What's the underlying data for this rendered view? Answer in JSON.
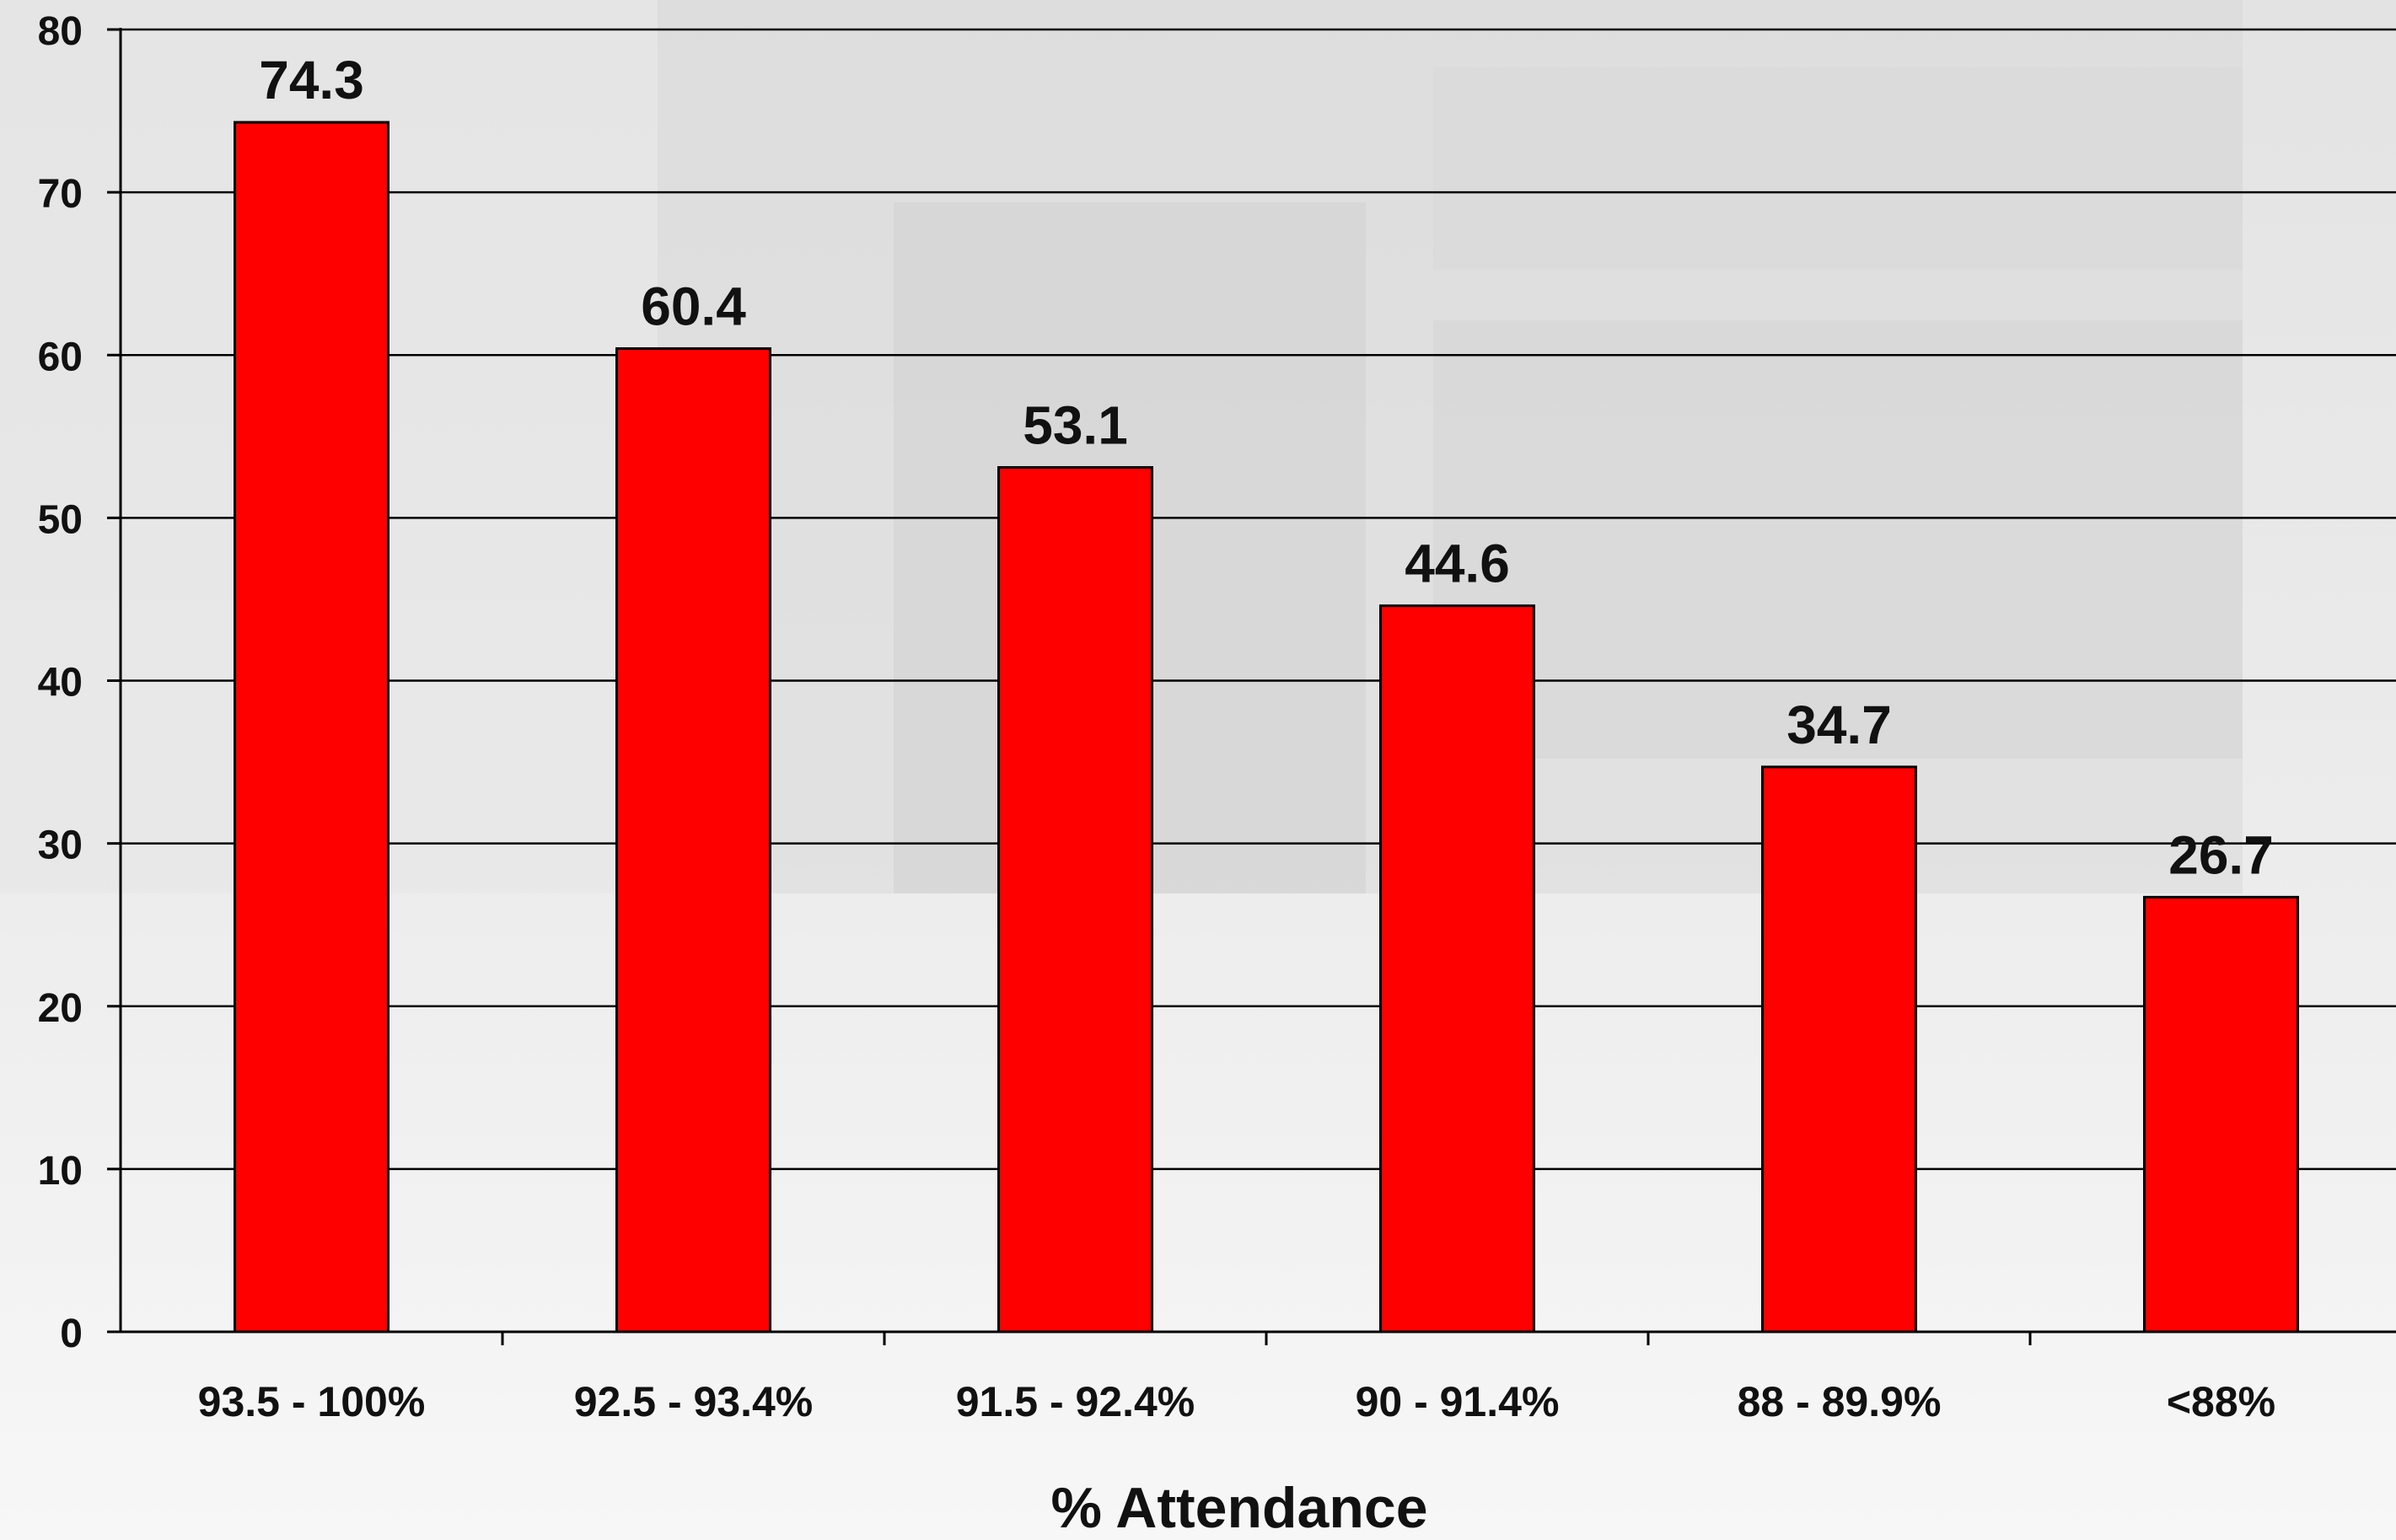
{
  "chart_data": {
    "type": "bar",
    "categories": [
      "93.5 - 100%",
      "92.5 - 93.4%",
      "91.5 - 92.4%",
      "90 - 91.4%",
      "88 - 89.9%",
      "<88%"
    ],
    "values": [
      74.3,
      60.4,
      53.1,
      44.6,
      34.7,
      26.7
    ],
    "value_labels": [
      "74.3",
      "60.4",
      "53.1",
      "44.6",
      "34.7",
      "26.7"
    ],
    "title": "",
    "xlabel": "% Attendance",
    "ylabel": "",
    "ylim": [
      0,
      80
    ],
    "yticks": [
      0,
      10,
      20,
      30,
      40,
      50,
      60,
      70,
      80
    ],
    "grid": true,
    "legend": "none",
    "colors": {
      "bar": "#ff0000",
      "bar_border": "#000000",
      "grid": "#000000",
      "text": "#111111"
    }
  }
}
